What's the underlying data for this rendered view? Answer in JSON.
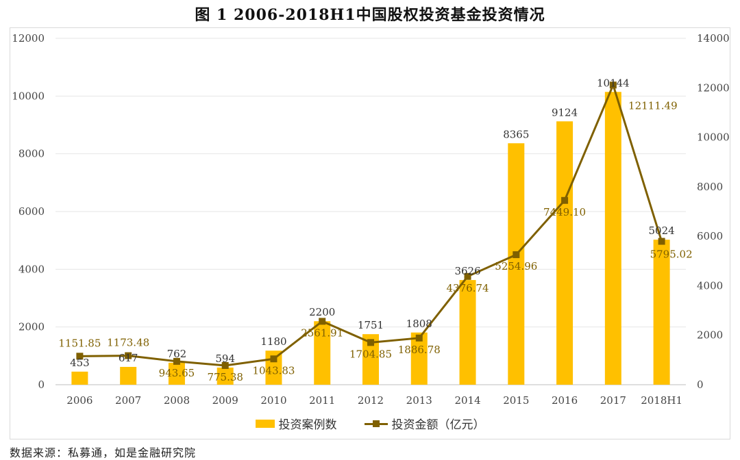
{
  "title": "图 1    2006-2018H1中国股权投资基金投资情况",
  "legend": {
    "bar_label": "投资案例数",
    "line_label": "投资金额（亿元）"
  },
  "source": "数据来源：私募通，如是金融研究院",
  "colors": {
    "bar": "#FFC000",
    "line": "#7F6000",
    "grid": "#e6e6e6",
    "axis_text": "#444444"
  },
  "chart_data": {
    "type": "bar",
    "categories": [
      "2006",
      "2007",
      "2008",
      "2009",
      "2010",
      "2011",
      "2012",
      "2013",
      "2014",
      "2015",
      "2016",
      "2017",
      "2018H1"
    ],
    "series": [
      {
        "name": "投资案例数",
        "type": "bar",
        "axis": "left",
        "values": [
          453,
          617,
          762,
          594,
          1180,
          2200,
          1751,
          1808,
          3626,
          8365,
          9124,
          10144,
          5024
        ],
        "labels": [
          "453",
          "617",
          "762",
          "594",
          "1180",
          "2200",
          "1751",
          "1808",
          "3626",
          "8365",
          "9124",
          "10144",
          "5024"
        ]
      },
      {
        "name": "投资金额（亿元）",
        "type": "line",
        "axis": "right",
        "values": [
          1151.85,
          1173.48,
          943.65,
          775.38,
          1043.83,
          2561.91,
          1704.85,
          1886.78,
          4376.74,
          5254.96,
          7449.1,
          12111.49,
          5795.02
        ],
        "labels": [
          "1151.85",
          "1173.48",
          "943.65",
          "775.38",
          "1043.83",
          "2561.91",
          "1704.85",
          "1886.78",
          "4376.74",
          "5254.96",
          "7449.10",
          "12111.49",
          "5795.02"
        ]
      }
    ],
    "y_left": {
      "range": [
        0,
        12000
      ],
      "ticks": [
        "0",
        "2000",
        "4000",
        "6000",
        "8000",
        "10000",
        "12000"
      ]
    },
    "y_right": {
      "range": [
        0,
        14000
      ],
      "ticks": [
        "0",
        "2000",
        "4000",
        "6000",
        "8000",
        "10000",
        "12000",
        "14000"
      ]
    },
    "grid": true,
    "legend_position": "bottom"
  }
}
